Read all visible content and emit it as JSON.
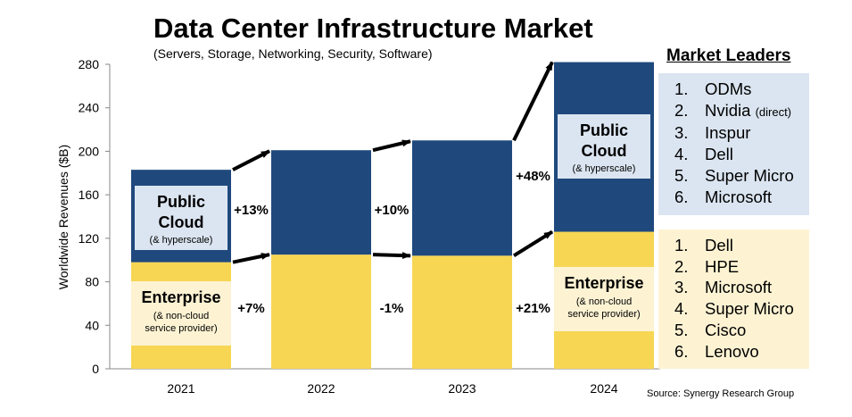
{
  "title": "Data Center Infrastructure Market",
  "subtitle": "(Servers, Storage, Networking, Security, Software)",
  "source": "Source: Synergy Research Group",
  "market_leaders": {
    "title": "Market Leaders",
    "public_cloud": [
      {
        "rank": "1.",
        "name": "ODMs",
        "note": ""
      },
      {
        "rank": "2.",
        "name": "Nvidia",
        "note": "(direct)"
      },
      {
        "rank": "3.",
        "name": "Inspur",
        "note": ""
      },
      {
        "rank": "4.",
        "name": "Dell",
        "note": ""
      },
      {
        "rank": "5.",
        "name": "Super Micro",
        "note": ""
      },
      {
        "rank": "6.",
        "name": "Microsoft",
        "note": ""
      }
    ],
    "enterprise": [
      {
        "rank": "1.",
        "name": "Dell",
        "note": ""
      },
      {
        "rank": "2.",
        "name": "HPE",
        "note": ""
      },
      {
        "rank": "3.",
        "name": "Microsoft",
        "note": ""
      },
      {
        "rank": "4.",
        "name": "Super Micro",
        "note": ""
      },
      {
        "rank": "5.",
        "name": "Cisco",
        "note": ""
      },
      {
        "rank": "6.",
        "name": "Lenovo",
        "note": ""
      }
    ]
  },
  "colors": {
    "public_cloud": "#1f497d",
    "enterprise": "#f7d654",
    "cloud_panel": "#dbe5f1",
    "enterprise_panel": "#fdf3d3",
    "label_box_cloud": "#dbe5f1",
    "label_box_enterprise": "#fdf3d3"
  },
  "chart_data": {
    "type": "bar",
    "stacked": true,
    "categories": [
      "2021",
      "2022",
      "2023",
      "2024"
    ],
    "series": [
      {
        "name": "Enterprise",
        "values": [
          98,
          105,
          104,
          126
        ]
      },
      {
        "name": "Public Cloud",
        "values": [
          85,
          96,
          106,
          156
        ]
      }
    ],
    "ylabel": "Worldwide Revenues ($B)",
    "ylim": [
      0,
      280
    ],
    "yticks": [
      0,
      40,
      80,
      120,
      160,
      200,
      240,
      280
    ],
    "grid": false,
    "growth_labels": {
      "public_cloud": [
        "+13%",
        "+10%",
        "+48%"
      ],
      "enterprise": [
        "+7%",
        "-1%",
        "+21%"
      ]
    },
    "segment_labels": {
      "public_cloud": {
        "name_line1": "Public",
        "name_line2": "Cloud",
        "note": "(& hyperscale)",
        "shown_on": [
          "2021",
          "2024"
        ]
      },
      "enterprise": {
        "name": "Enterprise",
        "note_line1": "(& non-cloud",
        "note_line2": "service provider)",
        "shown_on": [
          "2021",
          "2024"
        ]
      }
    }
  }
}
